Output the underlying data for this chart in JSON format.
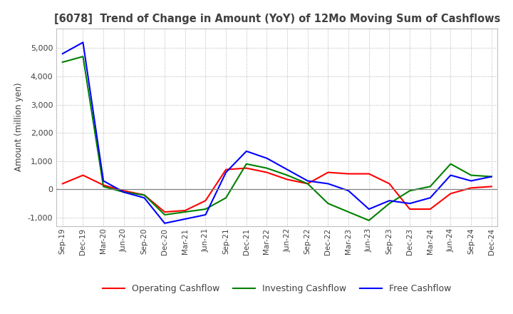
{
  "title": "[6078]  Trend of Change in Amount (YoY) of 12Mo Moving Sum of Cashflows",
  "ylabel": "Amount (million yen)",
  "x_labels": [
    "Sep-19",
    "Dec-19",
    "Mar-20",
    "Jun-20",
    "Sep-20",
    "Dec-20",
    "Mar-21",
    "Jun-21",
    "Sep-21",
    "Dec-21",
    "Mar-22",
    "Jun-22",
    "Sep-22",
    "Dec-22",
    "Mar-23",
    "Jun-23",
    "Sep-23",
    "Dec-23",
    "Mar-24",
    "Jun-24",
    "Sep-24",
    "Dec-24"
  ],
  "operating": [
    200,
    500,
    150,
    -50,
    -200,
    -800,
    -750,
    -400,
    700,
    750,
    600,
    350,
    200,
    600,
    550,
    550,
    200,
    -700,
    -700,
    -150,
    50,
    100
  ],
  "investing": [
    4500,
    4700,
    100,
    -100,
    -200,
    -900,
    -800,
    -700,
    -300,
    900,
    750,
    500,
    200,
    -500,
    -800,
    -1100,
    -500,
    -50,
    100,
    900,
    500,
    450
  ],
  "free": [
    4800,
    5200,
    300,
    -100,
    -300,
    -1200,
    -1050,
    -900,
    600,
    1350,
    1100,
    700,
    300,
    200,
    -50,
    -700,
    -400,
    -500,
    -300,
    500,
    300,
    450
  ],
  "ylim": [
    -1300,
    5700
  ],
  "yticks": [
    -1000,
    0,
    1000,
    2000,
    3000,
    4000,
    5000
  ],
  "operating_color": "#ff0000",
  "investing_color": "#008000",
  "free_color": "#0000ff",
  "title_color": "#404040",
  "background_color": "#ffffff",
  "grid_color": "#b0b0b0"
}
